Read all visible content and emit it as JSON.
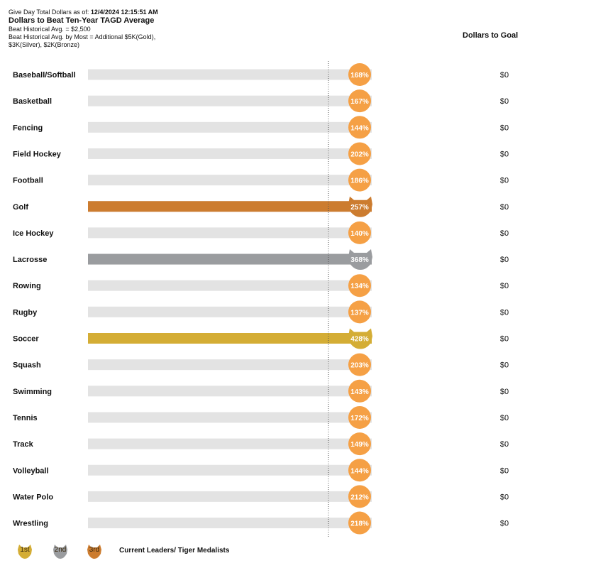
{
  "header": {
    "asof_label": "Give Day Total Dollars as of:",
    "asof_value": "12/4/2024 12:15:51 AM",
    "title": "Dollars to Beat Ten-Year TAGD Average",
    "line1": "Beat Historical Avg. = $2,500",
    "line2": "Beat Historical Avg. by Most = Additional $5K(Gold),",
    "line3": "$3K(Silver), $2K(Bronze)"
  },
  "goal_header": "Dollars to Goal",
  "colors": {
    "track": "#e3e3e3",
    "badge": "#f5a045",
    "gold": "#d4ad35",
    "silver": "#9a9c9f",
    "bronze": "#cc7c2f",
    "reference_line": "#555555"
  },
  "chart_data": {
    "type": "bar",
    "title": "Dollars to Beat Ten-Year TAGD Average",
    "xlabel": "",
    "ylabel": "",
    "categories": [
      "Baseball/Softball",
      "Basketball",
      "Fencing",
      "Field Hockey",
      "Football",
      "Golf",
      "Ice Hockey",
      "Lacrosse",
      "Rowing",
      "Rugby",
      "Soccer",
      "Squash",
      "Swimming",
      "Tennis",
      "Track",
      "Volleyball",
      "Water Polo",
      "Wrestling"
    ],
    "values": [
      168,
      167,
      144,
      202,
      186,
      257,
      140,
      368,
      134,
      137,
      428,
      203,
      143,
      172,
      149,
      144,
      212,
      218
    ],
    "labels": [
      "168%",
      "167%",
      "144%",
      "202%",
      "186%",
      "257%",
      "140%",
      "368%",
      "134%",
      "137%",
      "428%",
      "203%",
      "143%",
      "172%",
      "149%",
      "144%",
      "212%",
      "218%"
    ],
    "dollars_to_goal": [
      "$0",
      "$0",
      "$0",
      "$0",
      "$0",
      "$0",
      "$0",
      "$0",
      "$0",
      "$0",
      "$0",
      "$0",
      "$0",
      "$0",
      "$0",
      "$0",
      "$0",
      "$0"
    ],
    "medals": [
      "",
      "",
      "",
      "",
      "",
      "bronze",
      "",
      "silver",
      "",
      "",
      "gold",
      "",
      "",
      "",
      "",
      "",
      "",
      ""
    ],
    "reference_value": 100,
    "display_max": 118,
    "unit": "% of ten-year average"
  },
  "legend": {
    "items": [
      {
        "label": "1st",
        "medal": "gold"
      },
      {
        "label": "2nd",
        "medal": "silver"
      },
      {
        "label": "3rd",
        "medal": "bronze"
      }
    ],
    "caption": "Current Leaders/ Tiger Medalists"
  }
}
